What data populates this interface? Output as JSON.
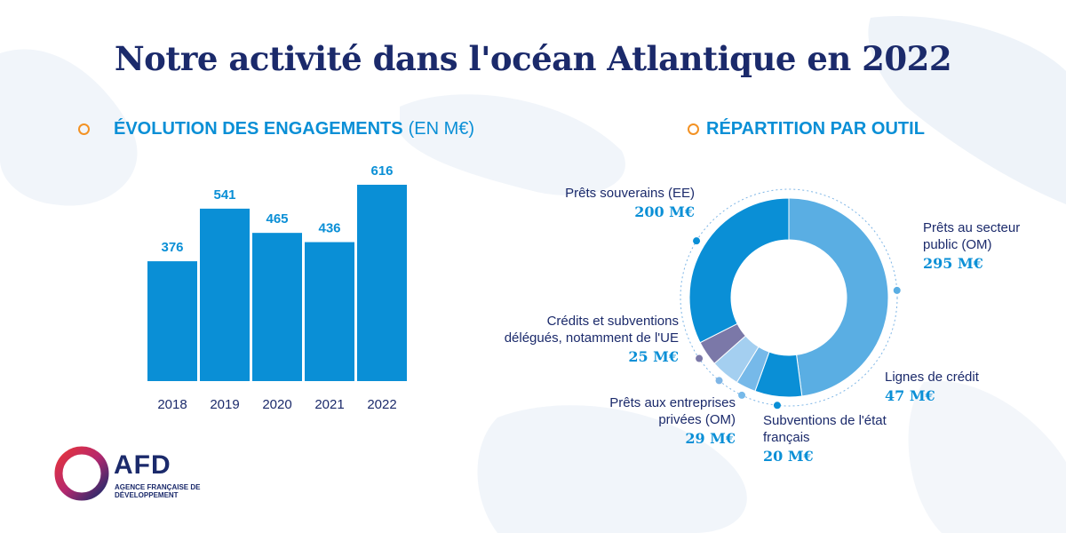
{
  "title": "Notre activité dans l'océan Atlantique en 2022",
  "colors": {
    "navy": "#1b2a6b",
    "blue": "#0a8fd6",
    "orange": "#f39224"
  },
  "bar_section": {
    "heading_bold": "ÉVOLUTION DES ENGAGEMENTS",
    "heading_normal": "(EN M€)"
  },
  "donut_section": {
    "heading": "RÉPARTITION PAR OUTIL"
  },
  "logo": {
    "name": "AFD",
    "subtitle": "AGENCE FRANÇAISE DE DÉVELOPPEMENT"
  },
  "chart_data": [
    {
      "type": "bar",
      "categories": [
        "2018",
        "2019",
        "2020",
        "2021",
        "2022"
      ],
      "values": [
        376,
        541,
        465,
        436,
        616
      ],
      "color": "#0a8fd6"
    },
    {
      "type": "pie",
      "style": "donut",
      "slices": [
        {
          "label": "Prêts au secteur public (OM)",
          "value_label": "295 M€",
          "value": 295,
          "color": "#5aaee3"
        },
        {
          "label": "Lignes de crédit",
          "value_label": "47 M€",
          "value": 47,
          "color": "#0a8fd6"
        },
        {
          "label": "Subventions de l'état français",
          "value_label": "20 M€",
          "value": 20,
          "color": "#76b9e9"
        },
        {
          "label": "Prêts aux entreprises privées (OM)",
          "value_label": "29 M€",
          "value": 29,
          "color": "#a4cff0"
        },
        {
          "label": "Crédits et subventions délégués, notamment de l'UE",
          "value_label": "25 M€",
          "value": 25,
          "color": "#7b78a8"
        },
        {
          "label": "Prêts souverains (EE)",
          "value_label": "200 M€",
          "value": 200,
          "color": "#0a8fd6"
        }
      ]
    }
  ]
}
